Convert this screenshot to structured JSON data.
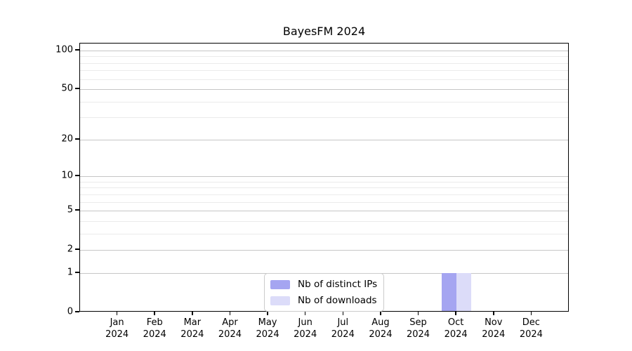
{
  "chart_data": {
    "type": "bar",
    "title": "BayesFM 2024",
    "categories": [
      "Jan 2024",
      "Feb 2024",
      "Mar 2024",
      "Apr 2024",
      "May 2024",
      "Jun 2024",
      "Jul 2024",
      "Aug 2024",
      "Sep 2024",
      "Oct 2024",
      "Nov 2024",
      "Dec 2024"
    ],
    "series": [
      {
        "name": "Nb of distinct IPs",
        "color": "#a5a5f1",
        "values": [
          0,
          0,
          0,
          0,
          0,
          0,
          0,
          0,
          0,
          1,
          0,
          0
        ]
      },
      {
        "name": "Nb of downloads",
        "color": "#dcdcf9",
        "values": [
          0,
          0,
          0,
          0,
          0,
          0,
          0,
          0,
          0,
          1,
          0,
          0
        ]
      }
    ],
    "y_axis": {
      "scale": "log1p",
      "range": [
        0,
        100
      ],
      "major_ticks": [
        0,
        1,
        2,
        5,
        10,
        20,
        50,
        100
      ],
      "minor_gridlines": [
        3,
        4,
        6,
        7,
        8,
        9,
        30,
        40,
        60,
        70,
        80,
        90
      ]
    },
    "legend_position": "lower center",
    "grid": true
  },
  "colors": {
    "grid_major": "#c6c6c6",
    "grid_minor": "#ebebeb",
    "spine": "#000000",
    "background": "#ffffff",
    "legend_border": "#cccccc"
  }
}
